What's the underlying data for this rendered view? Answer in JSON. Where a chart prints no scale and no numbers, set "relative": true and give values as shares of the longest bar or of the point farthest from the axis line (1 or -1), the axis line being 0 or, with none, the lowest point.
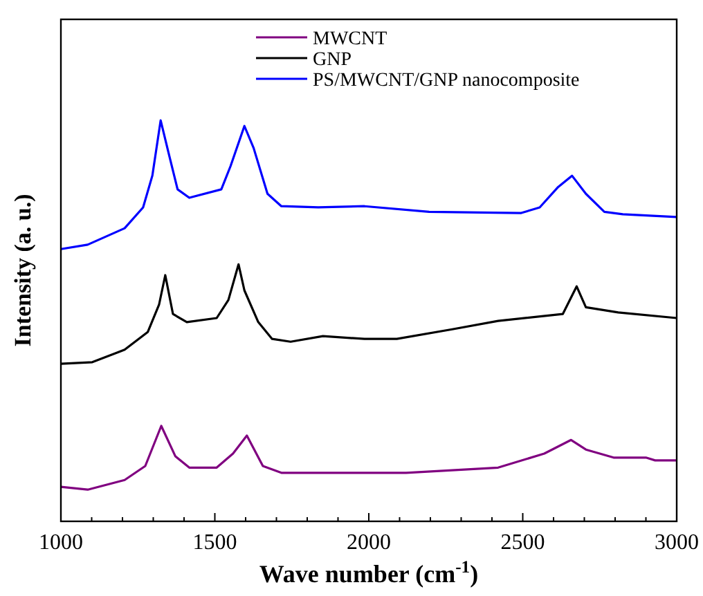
{
  "chart_data": {
    "type": "line",
    "relative": true,
    "xlabel": "Wave number (cm$^{-1}$)",
    "ylabel": "Intensity (a. u.)",
    "xlim": [
      1000,
      3000
    ],
    "xticks": [
      1000,
      {
        "value": 1100,
        "label": null
      },
      {
        "value": 1200,
        "label": null
      },
      {
        "value": 1300,
        "label": null
      },
      {
        "value": 1400,
        "label": null
      },
      1500,
      {
        "value": 1600,
        "label": null
      },
      {
        "value": 1700,
        "label": null
      },
      {
        "value": 1800,
        "label": null
      },
      {
        "value": 1900,
        "label": null
      },
      2000,
      {
        "value": 2100,
        "label": null
      },
      {
        "value": 2200,
        "label": null
      },
      {
        "value": 2300,
        "label": null
      },
      {
        "value": 2400,
        "label": null
      },
      2500,
      {
        "value": 2600,
        "label": null
      },
      {
        "value": 2700,
        "label": null
      },
      {
        "value": 2800,
        "label": null
      },
      {
        "value": 2900,
        "label": null
      },
      3000
    ],
    "tick_labels": "x",
    "legend": "top right",
    "line_style": "solid",
    "series": [
      {
        "name": "MWCNT",
        "color": "#800080",
        "x": [
          1000,
          1087,
          1207,
          1274,
          1326,
          1372,
          1417,
          1506,
          1559,
          1604,
          1656,
          1716,
          1986,
          2121,
          2420,
          2570,
          2657,
          2705,
          2795,
          2900,
          2930,
          3000
        ],
        "values": [
          0.086,
          0.079,
          0.103,
          0.138,
          0.238,
          0.162,
          0.134,
          0.134,
          0.169,
          0.214,
          0.138,
          0.121,
          0.121,
          0.121,
          0.134,
          0.169,
          0.203,
          0.179,
          0.159,
          0.159,
          0.152,
          0.152
        ]
      },
      {
        "name": "GNP",
        "color": "#000000",
        "x": [
          1000,
          1102,
          1207,
          1282,
          1319,
          1339,
          1364,
          1409,
          1506,
          1544,
          1577,
          1596,
          1641,
          1686,
          1746,
          1851,
          1986,
          2091,
          2271,
          2420,
          2630,
          2675,
          2705,
          2810,
          3000
        ],
        "values": [
          0.393,
          0.397,
          0.428,
          0.472,
          0.541,
          0.614,
          0.517,
          0.497,
          0.507,
          0.552,
          0.641,
          0.576,
          0.497,
          0.455,
          0.448,
          0.462,
          0.455,
          0.455,
          0.479,
          0.5,
          0.517,
          0.586,
          0.534,
          0.521,
          0.507
        ]
      },
      {
        "name": "PS/MWCNT/GNP nanocomposite",
        "color": "#0000ff",
        "x": [
          1000,
          1087,
          1207,
          1267,
          1297,
          1324,
          1349,
          1379,
          1417,
          1521,
          1551,
          1596,
          1626,
          1671,
          1716,
          1836,
          1986,
          2196,
          2495,
          2555,
          2615,
          2660,
          2705,
          2765,
          2825,
          3000
        ],
        "values": [
          0.679,
          0.69,
          0.731,
          0.783,
          0.862,
          1,
          0.921,
          0.828,
          0.807,
          0.828,
          0.886,
          0.986,
          0.931,
          0.817,
          0.786,
          0.783,
          0.786,
          0.772,
          0.769,
          0.783,
          0.834,
          0.862,
          0.817,
          0.772,
          0.766,
          0.759
        ]
      }
    ]
  }
}
